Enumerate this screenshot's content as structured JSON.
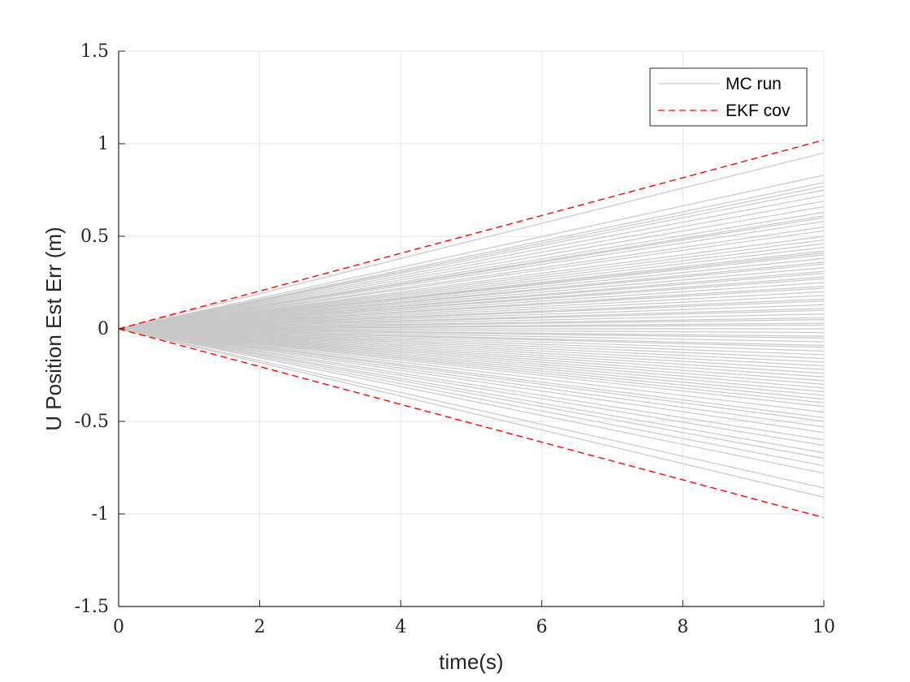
{
  "chart_data": {
    "type": "line",
    "title": "",
    "xlabel": "time(s)",
    "ylabel": "U Position Est Err (m)",
    "xlim": [
      0,
      10
    ],
    "ylim": [
      -1.5,
      1.5
    ],
    "xticks": [
      0,
      2,
      4,
      6,
      8,
      10
    ],
    "yticks": [
      -1.5,
      -1,
      -0.5,
      0,
      0.5,
      1,
      1.5
    ],
    "xtick_labels": [
      "0",
      "2",
      "4",
      "6",
      "8",
      "10"
    ],
    "ytick_labels": [
      "-1.5",
      "-1",
      "-0.5",
      "0",
      "0.5",
      "1",
      "1.5"
    ],
    "grid": true,
    "legend_position": "top-right",
    "legend": [
      "MC run",
      "EKF cov"
    ],
    "colors": {
      "mc_run": "#c8c8c8",
      "ekf_cov": "#ff0000",
      "grid": "#e6e6e6",
      "axis": "#262626"
    },
    "series": [
      {
        "name": "MC run",
        "style": "solid",
        "description_count": 80,
        "x": [
          0,
          10
        ],
        "final_values": [
          0.95,
          0.83,
          0.79,
          0.77,
          0.75,
          0.72,
          0.69,
          0.66,
          0.63,
          0.61,
          0.6,
          0.58,
          0.55,
          0.53,
          0.5,
          0.48,
          0.46,
          0.44,
          0.42,
          0.41,
          0.4,
          0.38,
          0.36,
          0.35,
          0.33,
          0.31,
          0.3,
          0.28,
          0.27,
          0.25,
          0.23,
          0.22,
          0.2,
          0.18,
          0.16,
          0.15,
          0.13,
          0.11,
          0.1,
          0.08,
          0.06,
          0.05,
          0.03,
          0.02,
          0.0,
          -0.02,
          -0.04,
          -0.05,
          -0.07,
          -0.09,
          -0.1,
          -0.12,
          -0.14,
          -0.16,
          -0.18,
          -0.2,
          -0.22,
          -0.24,
          -0.26,
          -0.28,
          -0.3,
          -0.32,
          -0.34,
          -0.36,
          -0.38,
          -0.4,
          -0.42,
          -0.45,
          -0.48,
          -0.5,
          -0.53,
          -0.56,
          -0.6,
          -0.63,
          -0.67,
          -0.7,
          -0.74,
          -0.78,
          -0.86,
          -0.91
        ]
      },
      {
        "name": "EKF cov",
        "style": "dashed",
        "upper": {
          "x": [
            0,
            10
          ],
          "y": [
            0,
            1.02
          ]
        },
        "lower": {
          "x": [
            0,
            10
          ],
          "y": [
            0,
            -1.02
          ]
        }
      }
    ]
  }
}
